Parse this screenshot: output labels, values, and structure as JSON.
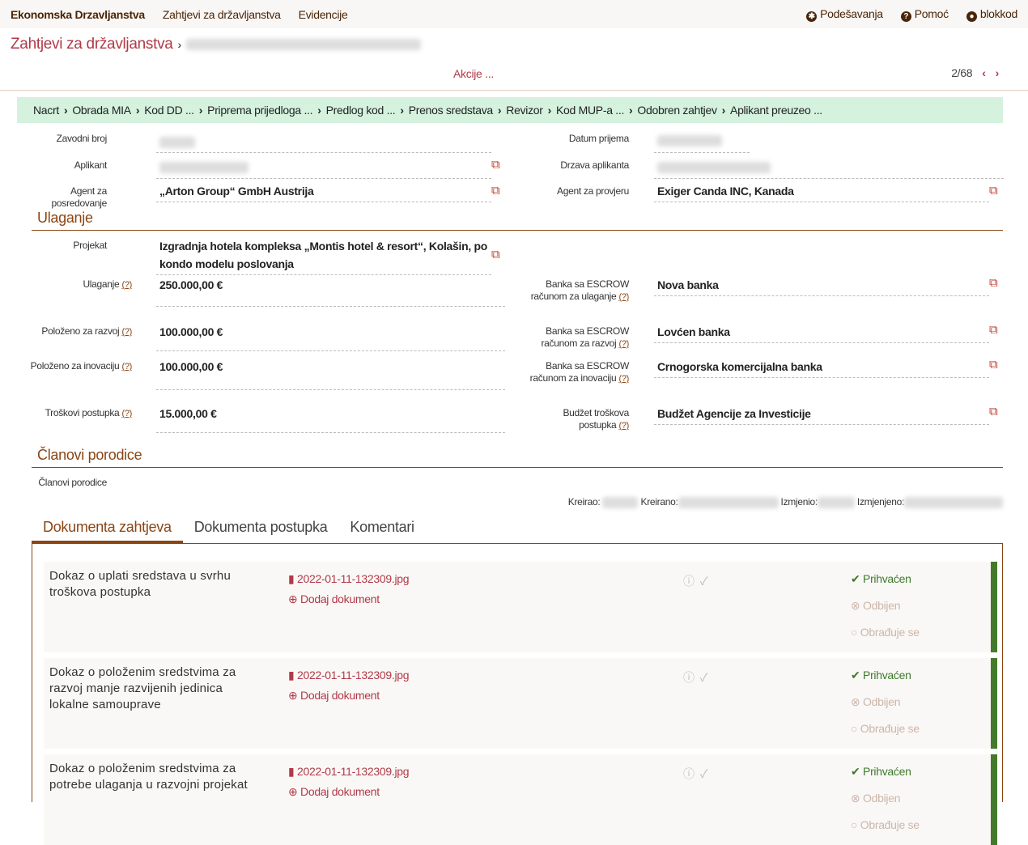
{
  "topbar": {
    "brand": "Ekonomska Drzavljanstva",
    "nav": [
      "Zahtjevi za državljanstva",
      "Evidencije"
    ],
    "settings": "Podešavanja",
    "help": "Pomoć",
    "user": "blokkod"
  },
  "title": {
    "crumb": "Zahtjevi za državljanstva",
    "sep": "›"
  },
  "actions": {
    "label": "Akcije ...",
    "pager": "2/68"
  },
  "steps": [
    "Nacrt",
    "Obrada MIA",
    "Kod DD ...",
    "Priprema prijedloga ...",
    "Predlog kod ...",
    "Prenos sredstava",
    "Revizor",
    "Kod MUP-a ...",
    "Odobren zahtjev",
    "Aplikant preuzeo ..."
  ],
  "fields": {
    "zavodni_broj": "Zavodni broj",
    "datum_prijema": "Datum prijema",
    "aplikant": "Aplikant",
    "drzava": "Drzava aplikanta",
    "agent_pos": "Agent za posredovanje",
    "agent_pos_val": "„Arton Group“ GmbH Austrija",
    "agent_prov": "Agent za provjeru",
    "agent_prov_val": "Exiger Canda INC, Kanada"
  },
  "ulaganje": {
    "heading": "Ulaganje",
    "projekat": "Projekat",
    "projekat_val": "Izgradnja hotela kompleksa „Montis hotel & resort“, Kolašin, po kondo modelu poslovanja",
    "rows": [
      {
        "label": "Ulaganje",
        "value": "250.000,00 €",
        "bank_label": "Banka sa ESCROW računom za ulaganje",
        "bank": "Nova banka"
      },
      {
        "label": "Položeno za razvoj",
        "value": "100.000,00 €",
        "bank_label": "Banka sa ESCROW računom za razvoj",
        "bank": "Lovćen banka"
      },
      {
        "label": "Položeno za inovaciju",
        "value": "100.000,00 €",
        "bank_label": "Banka sa ESCROW računom za inovaciju",
        "bank": "Crnogorska komercijalna banka"
      },
      {
        "label": "Troškovi postupka",
        "value": "15.000,00 €",
        "bank_label": "Budžet troškova postupka",
        "bank": "Budžet Agencije za Investicije"
      }
    ],
    "help": "(?)"
  },
  "clanovi": {
    "heading": "Članovi porodice",
    "label": "Članovi porodice"
  },
  "meta": {
    "kreirao": "Kreirao:",
    "kreirano": "Kreirano:",
    "izmjenio": "Izmjenio:",
    "izmjenjeno": "Izmjenjeno:"
  },
  "tabs": [
    "Dokumenta zahtjeva",
    "Dokumenta postupka",
    "Komentari"
  ],
  "documents": [
    {
      "title": "Dokaz o uplati sredstava u svrhu troškova postupka",
      "file": "2022-01-11-132309.jpg",
      "add": "Dodaj dokument"
    },
    {
      "title": "Dokaz o položenim sredstvima za razvoj manje razvijenih jedinica lokalne samouprave",
      "file": "2022-01-11-132309.jpg",
      "add": "Dodaj dokument"
    },
    {
      "title": "Dokaz o položenim sredstvima za potrebe ulaganja u razvojni projekat",
      "file": "2022-01-11-132309.jpg",
      "add": "Dodaj dokument"
    }
  ],
  "status": {
    "accepted": "Prihvaćen",
    "rejected": "Odbijen",
    "processing": "Obrađuje se"
  },
  "colors": {
    "accent": "#b03a48",
    "brown": "#8b4513",
    "green": "#447a2c",
    "steps_bg": "#d4f2de"
  }
}
